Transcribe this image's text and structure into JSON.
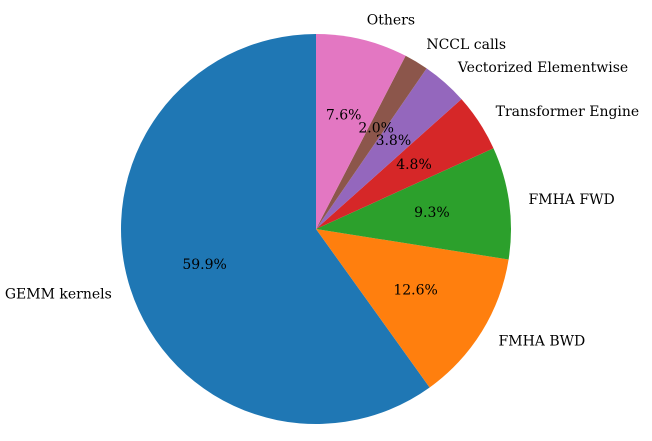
{
  "chart_data": {
    "type": "pie",
    "title": "",
    "start_angle_deg": 90,
    "direction": "counterclockwise",
    "legend": "none",
    "slices": [
      {
        "label": "GEMM kernels",
        "value": 59.9,
        "pct_text": "59.9%",
        "color": "#1f77b4"
      },
      {
        "label": "FMHA BWD",
        "value": 12.6,
        "pct_text": "12.6%",
        "color": "#ff7f0e"
      },
      {
        "label": "FMHA FWD",
        "value": 9.3,
        "pct_text": "9.3%",
        "color": "#2ca02c"
      },
      {
        "label": "Transformer Engine",
        "value": 4.8,
        "pct_text": "4.8%",
        "color": "#d62728"
      },
      {
        "label": "Vectorized Elementwise",
        "value": 3.8,
        "pct_text": "3.8%",
        "color": "#9467bd"
      },
      {
        "label": "NCCL calls",
        "value": 2.0,
        "pct_text": "2.0%",
        "color": "#8c564b"
      },
      {
        "label": "Others",
        "value": 7.6,
        "pct_text": "7.6%",
        "color": "#e377c2"
      }
    ]
  }
}
